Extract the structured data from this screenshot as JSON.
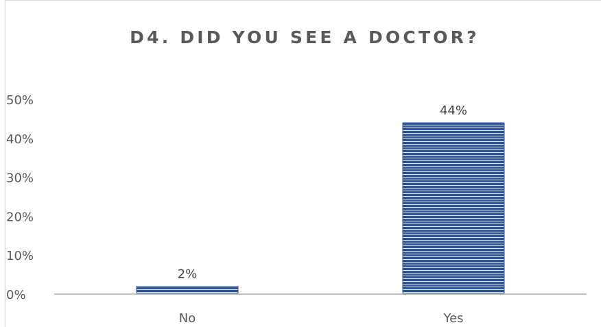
{
  "chart_data": {
    "type": "bar",
    "title": "D4. DID YOU SEE A DOCTOR?",
    "categories": [
      "No",
      "Yes"
    ],
    "values": [
      2,
      44
    ],
    "data_labels": [
      "2%",
      "44%"
    ],
    "y_ticks": [
      0,
      10,
      20,
      30,
      40,
      50
    ],
    "y_tick_labels": [
      "0%",
      "10%",
      "20%",
      "30%",
      "40%",
      "50%"
    ],
    "ylim": [
      0,
      50
    ],
    "xlabel": "",
    "ylabel": "",
    "grid": false,
    "legend": "none",
    "bar_color": "#2f5597",
    "bar_stripe_color": "#dce6f2",
    "axis_color": "#bfbfbf"
  }
}
